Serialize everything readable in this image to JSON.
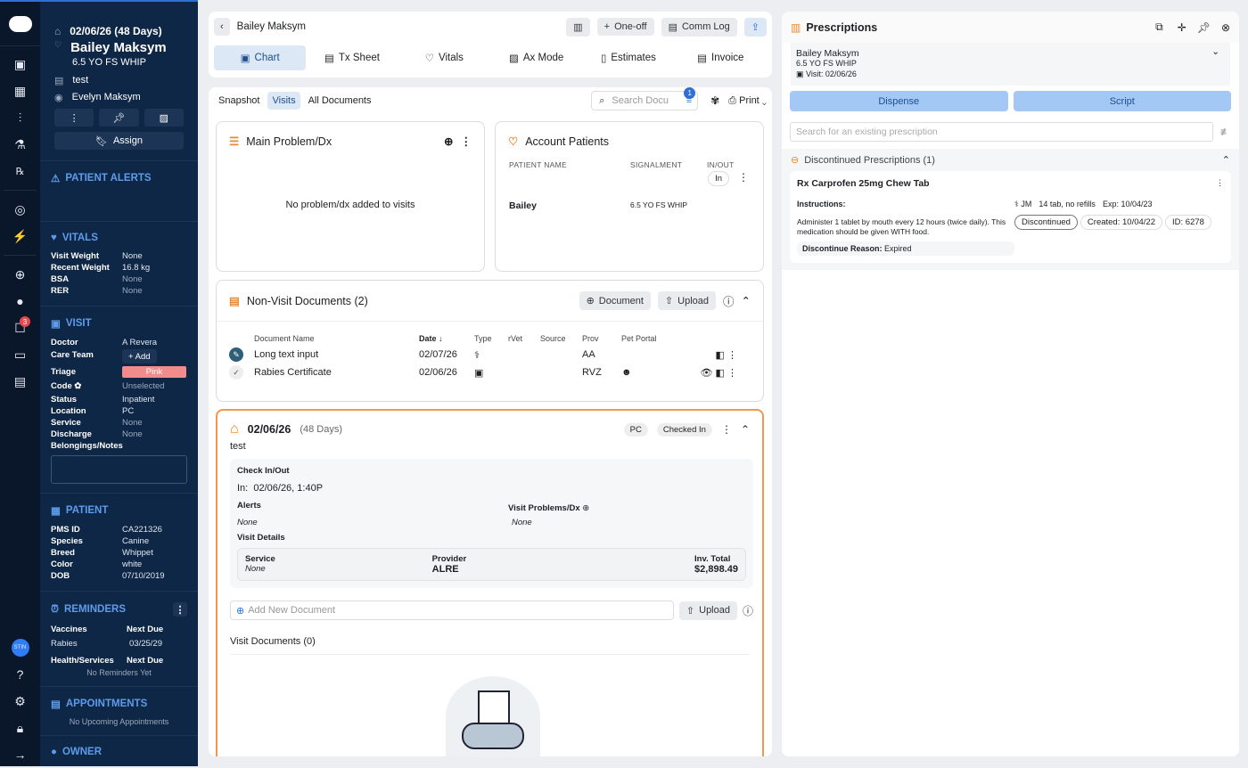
{
  "rail": {
    "badge_count": "3",
    "user_initials": "STIN",
    "icons": [
      "logo-icon",
      "monitor-icon",
      "calendar-icon",
      "chart-icon",
      "flask-icon",
      "rx-icon",
      "search-pet-icon",
      "bolt-icon",
      "add-pet-icon",
      "chat-icon",
      "tasks-icon",
      "messages-icon",
      "document-icon"
    ]
  },
  "patient": {
    "visit_date": "02/06/26 (48 Days)",
    "name": "Bailey Maksym",
    "signalment": "6.5 YO FS WHIP",
    "note": "test",
    "owner": "Evelyn Maksym",
    "assign_label": "Assign"
  },
  "alerts": {
    "title": "PATIENT ALERTS"
  },
  "vitals": {
    "title": "VITALS",
    "rows": [
      {
        "k": "Visit Weight",
        "v": "None"
      },
      {
        "k": "Recent Weight",
        "v": "16.8 kg"
      },
      {
        "k": "BSA",
        "v": "None"
      },
      {
        "k": "RER",
        "v": "None"
      }
    ]
  },
  "visit": {
    "title": "VISIT",
    "doctor_label": "Doctor",
    "doctor": "A Revera",
    "care_team_label": "Care Team",
    "add_label": "+ Add",
    "triage_label": "Triage",
    "triage": "Pink",
    "triage_color": "#f28b8b",
    "code_label": "Code",
    "code": "Unselected",
    "status_label": "Status",
    "status": "Inpatient",
    "location_label": "Location",
    "location": "PC",
    "service_label": "Service",
    "service": "None",
    "discharge_label": "Discharge",
    "discharge": "None",
    "belongings_label": "Belongings/Notes"
  },
  "patient_info": {
    "title": "PATIENT",
    "rows": [
      {
        "k": "PMS ID",
        "v": "CA221326"
      },
      {
        "k": "Species",
        "v": "Canine"
      },
      {
        "k": "Breed",
        "v": "Whippet"
      },
      {
        "k": "Color",
        "v": "white"
      },
      {
        "k": "DOB",
        "v": "07/10/2019"
      }
    ]
  },
  "reminders": {
    "title": "REMINDERS",
    "vaccines_label": "Vaccines",
    "next_due_label": "Next Due",
    "vaccine": "Rabies",
    "vaccine_due": "03/25/29",
    "health_label": "Health/Services",
    "empty": "No Reminders Yet"
  },
  "appointments": {
    "title": "APPOINTMENTS",
    "empty": "No Upcoming Appointments"
  },
  "owner": {
    "title": "OWNER"
  },
  "header": {
    "patient_name": "Bailey Maksym",
    "one_off": "One-off",
    "comm_log": "Comm Log"
  },
  "tabs": [
    "Chart",
    "Tx Sheet",
    "Vitals",
    "Ax Mode",
    "Estimates",
    "Invoice"
  ],
  "subtabs": {
    "items": [
      "Snapshot",
      "Visits",
      "All Documents"
    ],
    "active": "Visits",
    "search_placeholder": "Search Docu",
    "filter_count": "1",
    "print": "Print"
  },
  "problem": {
    "title": "Main Problem/Dx",
    "empty": "No problem/dx added to visits"
  },
  "account": {
    "title": "Account Patients",
    "col_name": "PATIENT NAME",
    "col_signalment": "SIGNALMENT",
    "col_inout": "IN/OUT",
    "in_label": "In",
    "rows": [
      {
        "name": "Bailey",
        "signalment": "6.5 YO FS WHIP"
      }
    ]
  },
  "nonvisit": {
    "title": "Non-Visit Documents (2)",
    "document_btn": "Document",
    "upload_btn": "Upload",
    "columns": [
      "Document Name",
      "Date",
      "Type",
      "rVet",
      "Source",
      "Prov",
      "Pet Portal"
    ],
    "rows": [
      {
        "name": "Long text input",
        "date": "02/07/26",
        "prov": "AA"
      },
      {
        "name": "Rabies Certificate",
        "date": "02/06/26",
        "prov": "RVZ"
      }
    ]
  },
  "visitcard": {
    "date": "02/06/26",
    "days": "(48 Days)",
    "location": "PC",
    "status": "Checked In",
    "note": "test",
    "checkin_title": "Check In/Out",
    "in_label": "In:",
    "in_time": "02/06/26, 1:40P",
    "alerts_label": "Alerts",
    "alerts": "None",
    "problems_label": "Visit Problems/Dx",
    "problems": "None",
    "details_label": "Visit Details",
    "service_label": "Service",
    "service": "None",
    "provider_label": "Provider",
    "provider": "ALRE",
    "total_label": "Inv. Total",
    "total": "$2,898.49",
    "add_doc_placeholder": "Add New Document",
    "upload": "Upload",
    "visit_docs": "Visit Documents (0)"
  },
  "rx": {
    "title": "Prescriptions",
    "patient": "Bailey Maksym",
    "signalment": "6.5 YO FS WHIP",
    "visit": "Visit: 02/06/26",
    "dispense": "Dispense",
    "script": "Script",
    "search_placeholder": "Search for an existing prescription",
    "section": "Discontinued Prescriptions (1)",
    "item": {
      "name": "Rx Carprofen 25mg Chew Tab",
      "instructions_label": "Instructions:",
      "instructions": "Administer 1 tablet by mouth every 12 hours (twice daily). This medication should be given WITH food.",
      "prescriber": "JM",
      "qty": "14 tab, no refills",
      "exp": "Exp: 10/04/23",
      "status": "Discontinued",
      "created": "Created: 10/04/22",
      "id": "ID: 6278",
      "reason_label": "Discontinue Reason:",
      "reason": "Expired"
    }
  }
}
